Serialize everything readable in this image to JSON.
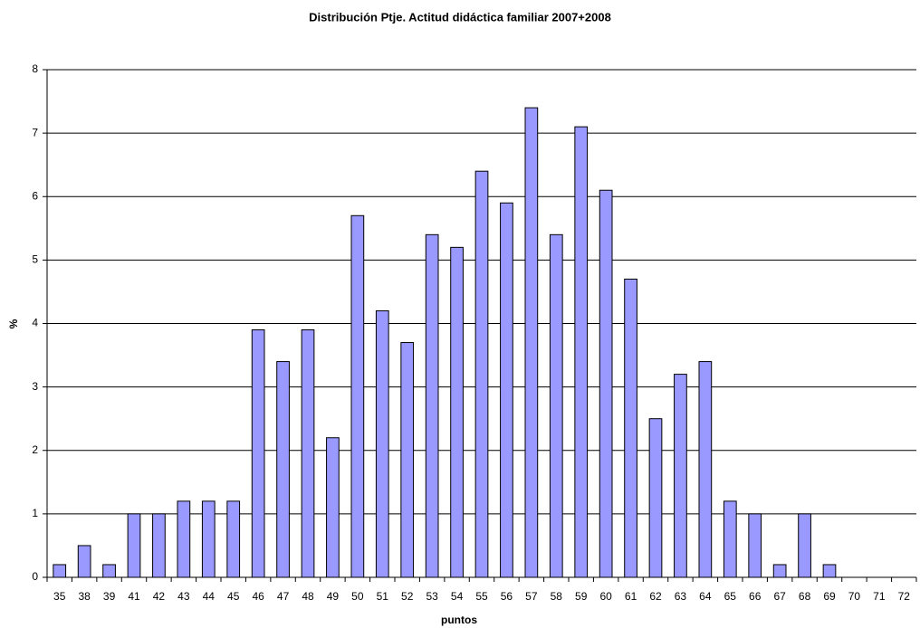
{
  "chart_data": {
    "type": "bar",
    "title": "Distribución Ptje. Actitud didáctica familiar 2007+2008",
    "x_label": "puntos",
    "y_label": "%",
    "categories": [
      "35",
      "38",
      "39",
      "41",
      "42",
      "43",
      "44",
      "45",
      "46",
      "47",
      "48",
      "49",
      "50",
      "51",
      "52",
      "53",
      "54",
      "55",
      "56",
      "57",
      "58",
      "59",
      "60",
      "61",
      "62",
      "63",
      "64",
      "65",
      "66",
      "67",
      "68",
      "69",
      "70",
      "71",
      "72"
    ],
    "values": [
      0.2,
      0.5,
      0.2,
      1.0,
      1.0,
      1.2,
      1.2,
      1.2,
      3.9,
      3.4,
      3.9,
      2.2,
      5.7,
      4.2,
      3.7,
      5.4,
      5.2,
      6.4,
      5.9,
      7.4,
      5.4,
      7.1,
      6.1,
      4.7,
      2.5,
      3.2,
      3.4,
      1.2,
      1.0,
      0.2,
      1.0,
      0.2,
      0,
      0,
      0
    ],
    "color": "#9999ff",
    "ylim": [
      0,
      8
    ],
    "yticks": [
      0,
      1,
      2,
      3,
      4,
      5,
      6,
      7,
      8
    ],
    "grid": true
  }
}
